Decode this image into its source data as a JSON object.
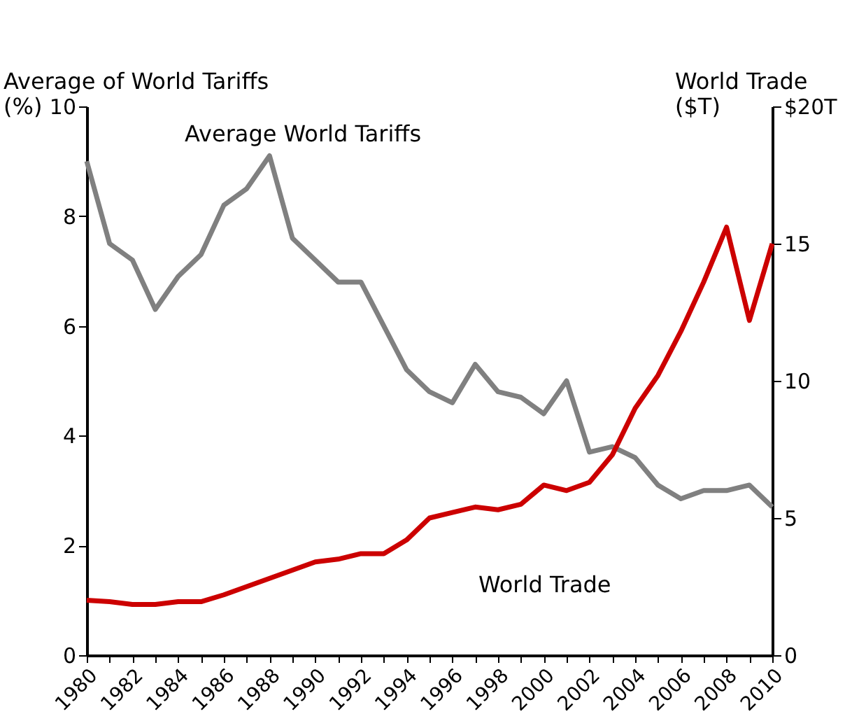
{
  "chart_data": {
    "type": "line",
    "ylabel": "Average of World Tariffs\n(%)",
    "y2label": "World Trade\n($T)",
    "x": [
      1980,
      1981,
      1982,
      1983,
      1984,
      1985,
      1986,
      1987,
      1988,
      1989,
      1990,
      1991,
      1992,
      1993,
      1994,
      1995,
      1996,
      1997,
      1998,
      1999,
      2000,
      2001,
      2002,
      2003,
      2004,
      2005,
      2006,
      2007,
      2008,
      2009,
      2010
    ],
    "series": [
      {
        "name": "Average World Tariffs",
        "color": "#808080",
        "values": [
          9.0,
          7.5,
          7.2,
          6.3,
          6.9,
          7.3,
          8.2,
          8.5,
          9.1,
          7.6,
          7.2,
          6.8,
          6.8,
          6.0,
          5.2,
          4.8,
          4.6,
          5.3,
          4.8,
          4.7,
          4.4,
          5.0,
          3.7,
          3.8,
          3.6,
          3.1,
          2.85,
          3.0,
          3.0,
          3.1,
          2.7
        ]
      },
      {
        "name": "World Trade",
        "color": "#cc0000",
        "axis": "y2",
        "values": [
          2.0,
          1.95,
          1.85,
          1.85,
          1.95,
          1.95,
          2.2,
          2.5,
          2.8,
          3.1,
          3.4,
          3.5,
          3.7,
          3.7,
          4.2,
          5.0,
          5.2,
          5.4,
          5.3,
          5.5,
          6.2,
          6.0,
          6.3,
          7.3,
          9.0,
          10.2,
          11.8,
          13.6,
          15.6,
          12.2,
          15.0
        ]
      }
    ],
    "xlim": [
      1980,
      2010
    ],
    "xticks": [
      1980,
      {
        "value": 1981,
        "label": null
      },
      1982,
      {
        "value": 1983,
        "label": null
      },
      1984,
      {
        "value": 1985,
        "label": null
      },
      1986,
      {
        "value": 1987,
        "label": null
      },
      1988,
      {
        "value": 1989,
        "label": null
      },
      1990,
      {
        "value": 1991,
        "label": null
      },
      1992,
      {
        "value": 1993,
        "label": null
      },
      1994,
      {
        "value": 1995,
        "label": null
      },
      1996,
      {
        "value": 1997,
        "label": null
      },
      1998,
      {
        "value": 1999,
        "label": null
      },
      2000,
      {
        "value": 2001,
        "label": null
      },
      2002,
      {
        "value": 2003,
        "label": null
      },
      2004,
      {
        "value": 2005,
        "label": null
      },
      2006,
      {
        "value": 2007,
        "label": null
      },
      2008,
      {
        "value": 2009,
        "label": null
      },
      2010
    ],
    "ylim": [
      0,
      10
    ],
    "yticks": [
      0,
      2,
      4,
      6,
      8,
      10
    ],
    "y2lim": [
      0,
      20
    ],
    "y2ticks": [
      0,
      5,
      10,
      15,
      {
        "value": 20,
        "label": "$20T"
      }
    ],
    "grid": false,
    "legend": false,
    "marker": "none",
    "line_style": "solid"
  }
}
